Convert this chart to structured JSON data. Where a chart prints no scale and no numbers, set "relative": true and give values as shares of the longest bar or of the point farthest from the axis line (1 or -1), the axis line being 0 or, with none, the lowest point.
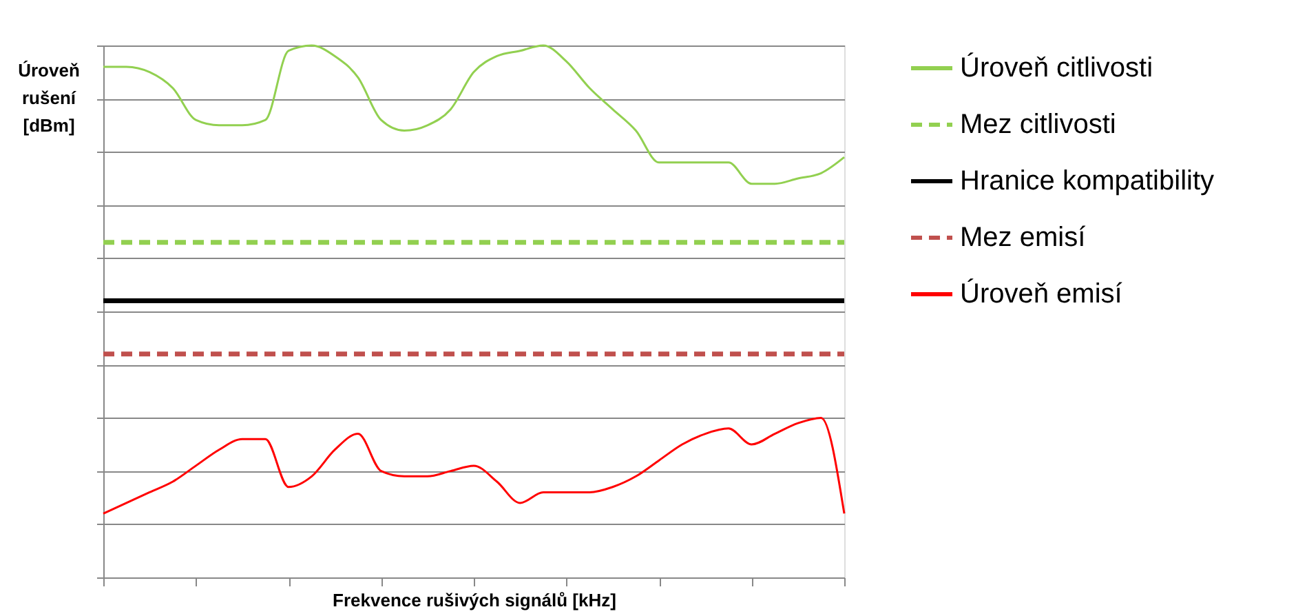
{
  "chart_data": {
    "type": "line",
    "relative": true,
    "xlabel": "Frekvence rušivých signálů [kHz]",
    "ylabel": "Úroveň rušení [dBm]",
    "categories": [
      null,
      null,
      null,
      null,
      null,
      null,
      null,
      null,
      null,
      null,
      null,
      null,
      null,
      null,
      null,
      null,
      null,
      null,
      null,
      null,
      null,
      null,
      null,
      null,
      null,
      null,
      null,
      null,
      null,
      null,
      null,
      null,
      null
    ],
    "series": [
      {
        "name": "Úroveň citlivosti",
        "color": "#92d050",
        "line_style": "solid",
        "values": [
          0.96,
          0.96,
          0.95,
          0.92,
          0.86,
          0.85,
          0.85,
          0.86,
          0.99,
          1.0,
          0.98,
          0.94,
          0.86,
          0.84,
          0.85,
          0.88,
          0.95,
          0.98,
          0.99,
          1.0,
          0.97,
          0.92,
          0.88,
          0.84,
          0.78,
          0.78,
          0.78,
          0.78,
          0.74,
          0.74,
          0.75,
          0.76,
          0.79
        ]
      },
      {
        "name": "Mez citlivosti",
        "color": "#92d050",
        "line_style": "dashed",
        "values": [
          0.63,
          0.63,
          0.63,
          0.63,
          0.63,
          0.63,
          0.63,
          0.63,
          0.63,
          0.63,
          0.63,
          0.63,
          0.63,
          0.63,
          0.63,
          0.63,
          0.63,
          0.63,
          0.63,
          0.63,
          0.63,
          0.63,
          0.63,
          0.63,
          0.63,
          0.63,
          0.63,
          0.63,
          0.63,
          0.63,
          0.63,
          0.63,
          0.63
        ]
      },
      {
        "name": "Hranice kompatibility",
        "color": "#000000",
        "line_style": "solid",
        "values": [
          0.52,
          0.52,
          0.52,
          0.52,
          0.52,
          0.52,
          0.52,
          0.52,
          0.52,
          0.52,
          0.52,
          0.52,
          0.52,
          0.52,
          0.52,
          0.52,
          0.52,
          0.52,
          0.52,
          0.52,
          0.52,
          0.52,
          0.52,
          0.52,
          0.52,
          0.52,
          0.52,
          0.52,
          0.52,
          0.52,
          0.52,
          0.52,
          0.52
        ]
      },
      {
        "name": "Mez emisí",
        "color": "#c0504d",
        "line_style": "dashed",
        "values": [
          0.42,
          0.42,
          0.42,
          0.42,
          0.42,
          0.42,
          0.42,
          0.42,
          0.42,
          0.42,
          0.42,
          0.42,
          0.42,
          0.42,
          0.42,
          0.42,
          0.42,
          0.42,
          0.42,
          0.42,
          0.42,
          0.42,
          0.42,
          0.42,
          0.42,
          0.42,
          0.42,
          0.42,
          0.42,
          0.42,
          0.42,
          0.42,
          0.42
        ]
      },
      {
        "name": "Úroveň emisí",
        "color": "#ff0000",
        "line_style": "solid",
        "values": [
          0.12,
          0.14,
          0.16,
          0.18,
          0.21,
          0.24,
          0.26,
          0.26,
          0.17,
          0.19,
          0.24,
          0.27,
          0.2,
          0.19,
          0.19,
          0.2,
          0.21,
          0.18,
          0.14,
          0.16,
          0.16,
          0.16,
          0.17,
          0.19,
          0.22,
          0.25,
          0.27,
          0.28,
          0.25,
          0.27,
          0.29,
          0.3,
          0.12
        ]
      }
    ],
    "grid": "y",
    "legend": "right"
  }
}
